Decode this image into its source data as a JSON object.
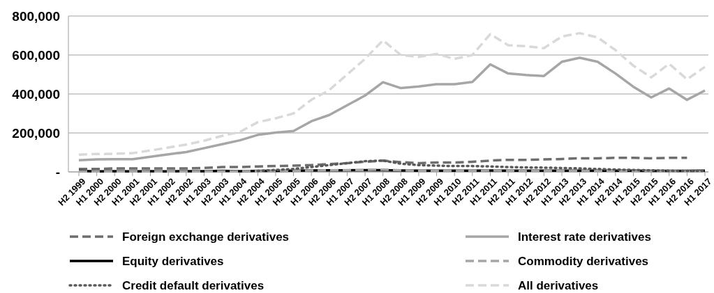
{
  "chart_data": {
    "type": "line",
    "categories": [
      "H2 1999",
      "H1 2000",
      "H2 2000",
      "H1 2001",
      "H2 2001",
      "H1 2002",
      "H2 2002",
      "H1 2003",
      "H2 2003",
      "H1 2004",
      "H2 2004",
      "H1 2005",
      "H2 2005",
      "H1 2006",
      "H2 2006",
      "H1 2007",
      "H2 2007",
      "H1 2008",
      "H2 2008",
      "H1 2009",
      "H2 2009",
      "H1 2010",
      "H2 2011",
      "H1 2011",
      "H2 2011",
      "H1 2012",
      "H2 2012",
      "H1 2013",
      "H2 2013",
      "H1 2014",
      "H2 2014",
      "H1 2015",
      "H2 2015",
      "H1 2016",
      "H2 2016",
      "H1 2017"
    ],
    "series": [
      {
        "name": "Foreign exchange derivatives",
        "color": "#6e6e6e",
        "line_style": "dashed",
        "values": [
          15000,
          15000,
          18000,
          18000,
          18000,
          18000,
          18000,
          20000,
          25000,
          25000,
          28000,
          30000,
          32000,
          35000,
          40000,
          45000,
          52000,
          58000,
          50000,
          45000,
          48000,
          48000,
          52000,
          58000,
          62000,
          62000,
          64000,
          66000,
          70000,
          70000,
          72000,
          72000,
          70000,
          72000,
          72000,
          null
        ]
      },
      {
        "name": "Interest rate derivatives",
        "color": "#a6a6a6",
        "line_style": "solid",
        "values": [
          60000,
          64000,
          65000,
          65000,
          78000,
          90000,
          102000,
          122000,
          142000,
          162000,
          190000,
          202000,
          210000,
          260000,
          292000,
          342000,
          392000,
          460000,
          430000,
          438000,
          450000,
          450000,
          462000,
          552000,
          505000,
          497000,
          492000,
          565000,
          586000,
          565000,
          505000,
          437000,
          382000,
          428000,
          370000,
          418000
        ]
      },
      {
        "name": "Equity derivatives",
        "color": "#000000",
        "line_style": "solid",
        "values": [
          5000,
          3000,
          4000,
          3000,
          4000,
          3000,
          4000,
          4000,
          5000,
          4000,
          5000,
          5000,
          6000,
          7000,
          8000,
          8000,
          9000,
          9000,
          7000,
          6000,
          6000,
          6000,
          6000,
          7000,
          6000,
          6000,
          6000,
          6000,
          6000,
          6000,
          6000,
          6000,
          5000,
          5000,
          5000,
          6000
        ]
      },
      {
        "name": "Commodity derivatives",
        "color": "#a6a6a6",
        "line_style": "dashed",
        "values": [
          3000,
          3000,
          3000,
          3000,
          3000,
          3000,
          3000,
          3000,
          3000,
          3000,
          4000,
          4000,
          5000,
          7000,
          8000,
          9000,
          10000,
          12000,
          8000,
          6000,
          6000,
          6000,
          6000,
          7000,
          6000,
          5000,
          5000,
          5000,
          5000,
          5000,
          5000,
          4000,
          4000,
          4000,
          3000,
          3000
        ]
      },
      {
        "name": "Credit default derivatives",
        "color": "#595959",
        "line_style": "dotted",
        "values": [
          null,
          null,
          null,
          null,
          null,
          null,
          null,
          null,
          null,
          null,
          5000,
          10000,
          15000,
          25000,
          35000,
          45000,
          55000,
          58000,
          42000,
          35000,
          32000,
          30000,
          30000,
          28000,
          25000,
          23000,
          22000,
          20000,
          18000,
          15000,
          12000,
          10000,
          8000,
          6000,
          5000,
          5000
        ]
      },
      {
        "name": "All derivatives",
        "color": "#d9d9d9",
        "line_style": "dashed",
        "values": [
          88000,
          92000,
          93000,
          96000,
          110000,
          125000,
          140000,
          160000,
          185000,
          205000,
          255000,
          275000,
          300000,
          370000,
          420000,
          500000,
          580000,
          675000,
          600000,
          590000,
          605000,
          580000,
          600000,
          707000,
          650000,
          645000,
          635000,
          695000,
          712000,
          690000,
          625000,
          545000,
          485000,
          555000,
          475000,
          539000
        ]
      }
    ],
    "ylim": [
      0,
      800000
    ],
    "yticks": [
      {
        "value": 0,
        "label": "-"
      },
      {
        "value": 200000,
        "label": "200,000"
      },
      {
        "value": 400000,
        "label": "400,000"
      },
      {
        "value": 600000,
        "label": "600,000"
      },
      {
        "value": 800000,
        "label": "800,000"
      }
    ],
    "grid": "y",
    "legend": "bottom"
  }
}
